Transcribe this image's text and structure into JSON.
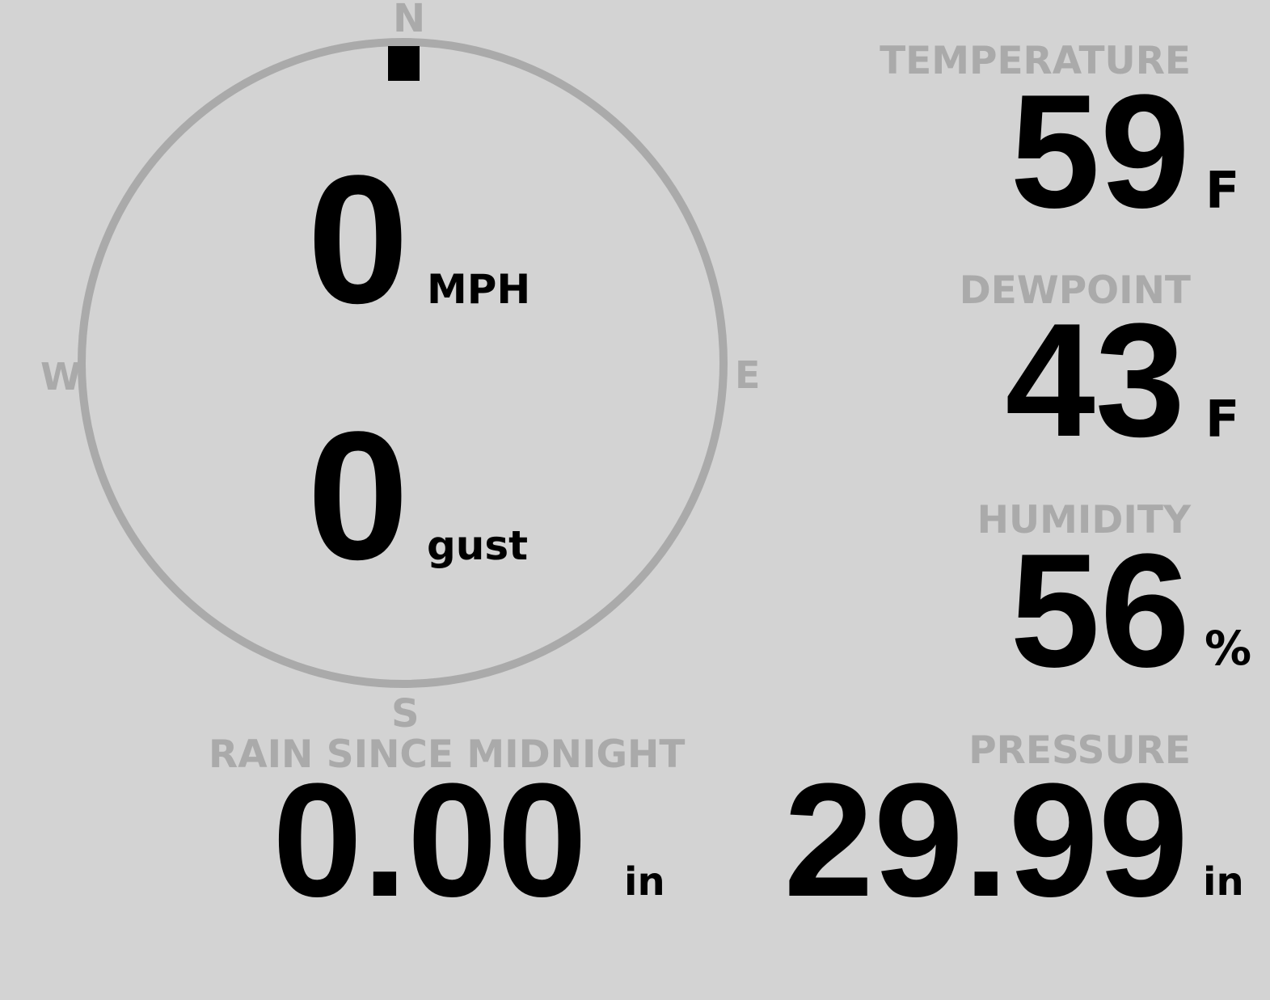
{
  "colors": {
    "background": "#d3d3d3",
    "label": "#aaaaaa",
    "value": "#000000",
    "compass_ring": "#aaaaaa",
    "direction_marker": "#000000"
  },
  "wind": {
    "compass": {
      "north": "N",
      "east": "E",
      "south": "S",
      "west": "W"
    },
    "direction_degrees": 0,
    "speed": "0",
    "speed_unit": "MPH",
    "gust": "0",
    "gust_unit": "gust"
  },
  "temperature": {
    "label": "TEMPERATURE",
    "value": "59",
    "unit": "F"
  },
  "dewpoint": {
    "label": "DEWPOINT",
    "value": "43",
    "unit": "F"
  },
  "humidity": {
    "label": "HUMIDITY",
    "value": "56",
    "unit": "%"
  },
  "rain": {
    "label": "RAIN SINCE MIDNIGHT",
    "value": "0.00",
    "unit": "in"
  },
  "pressure": {
    "label": "PRESSURE",
    "value": "29.99",
    "unit": "in"
  }
}
